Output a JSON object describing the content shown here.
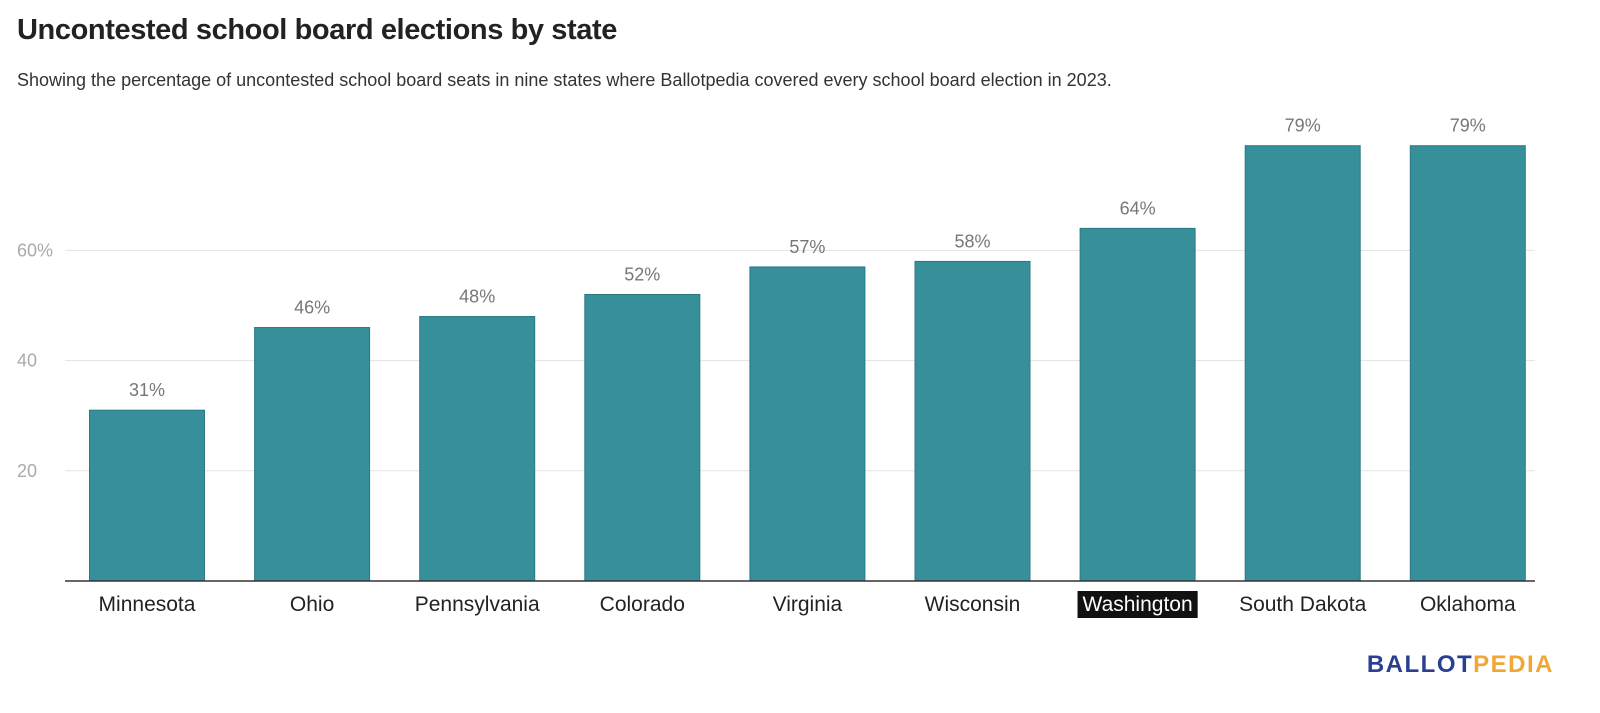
{
  "header": {
    "title": "Uncontested school board elections by state",
    "subtitle": "Showing the percentage of uncontested school board seats in nine states where Ballotpedia covered every school board election in 2023."
  },
  "logo": {
    "part1": "BALLOT",
    "part2": "PEDIA"
  },
  "chart_data": {
    "type": "bar",
    "title": "Uncontested school board elections by state",
    "subtitle": "Showing the percentage of uncontested school board seats in nine states where Ballotpedia covered every school board election in 2023.",
    "categories": [
      "Minnesota",
      "Ohio",
      "Pennsylvania",
      "Colorado",
      "Virginia",
      "Wisconsin",
      "Washington",
      "South Dakota",
      "Oklahoma"
    ],
    "values": [
      31,
      46,
      48,
      52,
      57,
      58,
      64,
      79,
      79
    ],
    "value_labels": [
      "31%",
      "46%",
      "48%",
      "52%",
      "57%",
      "58%",
      "64%",
      "79%",
      "79%"
    ],
    "highlighted_category": "Washington",
    "yticks": [
      20,
      40,
      60
    ],
    "ytick_labels": [
      "20",
      "40",
      "60%"
    ],
    "ylim": [
      0,
      82
    ],
    "grid": true,
    "xlabel": "",
    "ylabel": "",
    "colors": {
      "bar": "#368f99",
      "bar_edge": "#2a7a84",
      "grid": "#e3e3e3",
      "axis": "#333333",
      "highlight_bg": "#111111"
    }
  }
}
